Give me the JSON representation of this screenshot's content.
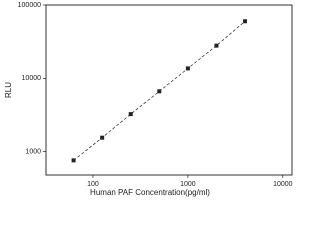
{
  "chart_data": {
    "type": "scatter",
    "x_label": "Human PAF Concentration(pg/ml)",
    "y_label": "RLU",
    "x": [
      62.5,
      125,
      250,
      500,
      1000,
      2000,
      4000
    ],
    "values": [
      760,
      1550,
      3250,
      6650,
      13650,
      27900,
      60000
    ],
    "color": "#222222",
    "line_style": "dashed",
    "xscale": "log",
    "yscale": "log",
    "xlim": [
      32,
      12500
    ],
    "ylim": [
      480,
      100000
    ],
    "xticks": [
      100,
      1000,
      10000
    ],
    "yticks": [
      1000,
      10000,
      100000
    ]
  }
}
